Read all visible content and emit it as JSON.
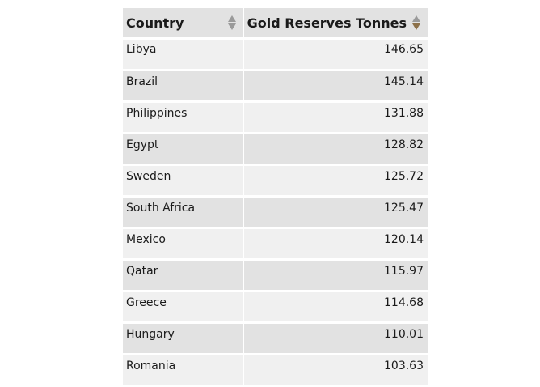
{
  "table": {
    "columns": [
      {
        "label": "Country",
        "sort_state": "none",
        "sort_icon": "sort-both-icon"
      },
      {
        "label": "Gold Reserves Tonnes",
        "sort_state": "descending",
        "sort_icon": "sort-desc-icon"
      }
    ],
    "rows": [
      {
        "country": "Libya",
        "gold": "146.65"
      },
      {
        "country": "Brazil",
        "gold": "145.14"
      },
      {
        "country": "Philippines",
        "gold": "131.88"
      },
      {
        "country": "Egypt",
        "gold": "128.82"
      },
      {
        "country": "Sweden",
        "gold": "125.72"
      },
      {
        "country": "South Africa",
        "gold": "125.47"
      },
      {
        "country": "Mexico",
        "gold": "120.14"
      },
      {
        "country": "Qatar",
        "gold": "115.97"
      },
      {
        "country": "Greece",
        "gold": "114.68"
      },
      {
        "country": "Hungary",
        "gold": "110.01"
      },
      {
        "country": "Romania",
        "gold": "103.63"
      }
    ]
  },
  "colors": {
    "header_bg": "#e2e2e2",
    "row_odd_bg": "#f0f0f0",
    "row_even_bg": "#e2e2e2",
    "sort_inactive": "#9a9a9a",
    "sort_active": "#8c7049"
  }
}
